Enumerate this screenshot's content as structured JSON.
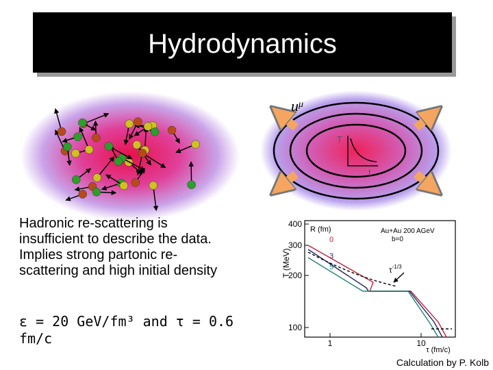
{
  "title": "Hydrodynamics",
  "diagram": {
    "flow_label": "u",
    "flow_label_sup": "μ",
    "axis_y": "T",
    "axis_x": "t"
  },
  "text": {
    "paragraph": [
      "Hadronic re-scattering is",
      "insufficient to describe the data.",
      "Implies strong partonic re-",
      "scattering and high initial density"
    ],
    "formula": [
      "ε = 20 GeV/fm³ and τ = 0.6",
      "fm/c"
    ]
  },
  "plot": {
    "y_label": "T (MeV)",
    "x_label": "τ (fm/c)",
    "yticks": [
      400,
      300,
      200,
      100
    ],
    "xticks": [
      1,
      10
    ],
    "legend_title": "R (fm)",
    "legend": [
      "0",
      "3",
      "5"
    ],
    "system": "Au+Au 200 AGeV",
    "impact": "b=0",
    "power_law": "τ",
    "power_law_exp": "-1/3"
  },
  "caption": "Calculation by P. Kolb"
}
